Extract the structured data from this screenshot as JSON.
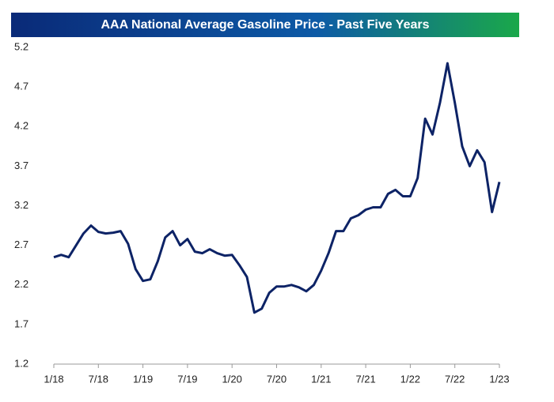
{
  "chart_data": {
    "type": "line",
    "title": "AAA National Average Gasoline Price - Past Five Years",
    "x": [
      2018,
      2018.083,
      2018.167,
      2018.25,
      2018.333,
      2018.417,
      2018.5,
      2018.583,
      2018.667,
      2018.75,
      2018.833,
      2018.917,
      2019,
      2019.083,
      2019.167,
      2019.25,
      2019.333,
      2019.417,
      2019.5,
      2019.583,
      2019.667,
      2019.75,
      2019.833,
      2019.917,
      2020,
      2020.083,
      2020.167,
      2020.25,
      2020.333,
      2020.417,
      2020.5,
      2020.583,
      2020.667,
      2020.75,
      2020.833,
      2020.917,
      2021,
      2021.083,
      2021.167,
      2021.25,
      2021.333,
      2021.417,
      2021.5,
      2021.583,
      2021.667,
      2021.75,
      2021.833,
      2021.917,
      2022,
      2022.083,
      2022.167,
      2022.25,
      2022.333,
      2022.417,
      2022.5,
      2022.583,
      2022.667,
      2022.75,
      2022.833,
      2022.917,
      2023
    ],
    "series": [
      {
        "name": "Gasoline Price",
        "color": "#0d2366",
        "values": [
          2.55,
          2.58,
          2.55,
          2.7,
          2.85,
          2.95,
          2.87,
          2.85,
          2.86,
          2.88,
          2.72,
          2.4,
          2.25,
          2.27,
          2.5,
          2.8,
          2.88,
          2.7,
          2.78,
          2.62,
          2.6,
          2.65,
          2.6,
          2.57,
          2.58,
          2.45,
          2.3,
          1.85,
          1.9,
          2.1,
          2.18,
          2.18,
          2.2,
          2.17,
          2.12,
          2.2,
          2.38,
          2.6,
          2.88,
          2.88,
          3.04,
          3.08,
          3.15,
          3.18,
          3.18,
          3.35,
          3.4,
          3.32,
          3.32,
          3.55,
          4.3,
          4.1,
          4.5,
          5.0,
          4.5,
          3.95,
          3.7,
          3.9,
          3.75,
          3.12,
          3.5
        ]
      }
    ],
    "xlim": [
      2018,
      2023
    ],
    "xticks": [
      {
        "value": 2018,
        "label": "1/18"
      },
      {
        "value": 2018.5,
        "label": "7/18"
      },
      {
        "value": 2019,
        "label": "1/19"
      },
      {
        "value": 2019.5,
        "label": "7/19"
      },
      {
        "value": 2020,
        "label": "1/20"
      },
      {
        "value": 2020.5,
        "label": "7/20"
      },
      {
        "value": 2021,
        "label": "1/21"
      },
      {
        "value": 2021.5,
        "label": "7/21"
      },
      {
        "value": 2022,
        "label": "1/22"
      },
      {
        "value": 2022.5,
        "label": "7/22"
      },
      {
        "value": 2023,
        "label": "1/23"
      }
    ],
    "ylim": [
      1.2,
      5.2
    ],
    "yticks": [
      1.2,
      1.7,
      2.2,
      2.7,
      3.2,
      3.7,
      4.2,
      4.7,
      5.2
    ],
    "grid": false
  }
}
